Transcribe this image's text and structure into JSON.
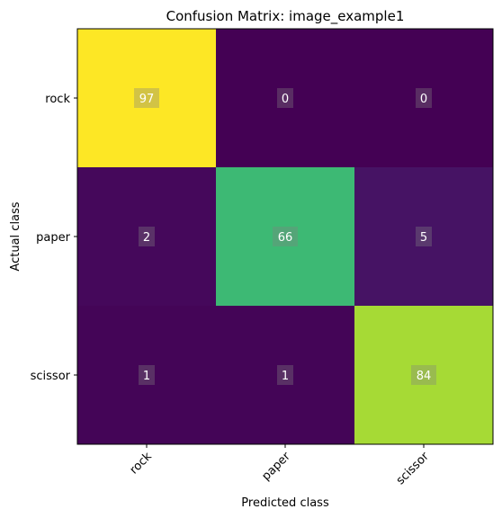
{
  "chart_data": {
    "type": "heatmap",
    "title": "Confusion Matrix: image_example1",
    "xlabel": "Predicted class",
    "ylabel": "Actual class",
    "x_categories": [
      "rock",
      "paper",
      "scissor"
    ],
    "y_categories": [
      "rock",
      "paper",
      "scissor"
    ],
    "values": [
      [
        97,
        0,
        0
      ],
      [
        2,
        66,
        5
      ],
      [
        1,
        1,
        84
      ]
    ],
    "colormap": "viridis",
    "value_range": [
      0,
      97
    ],
    "grid": false
  }
}
